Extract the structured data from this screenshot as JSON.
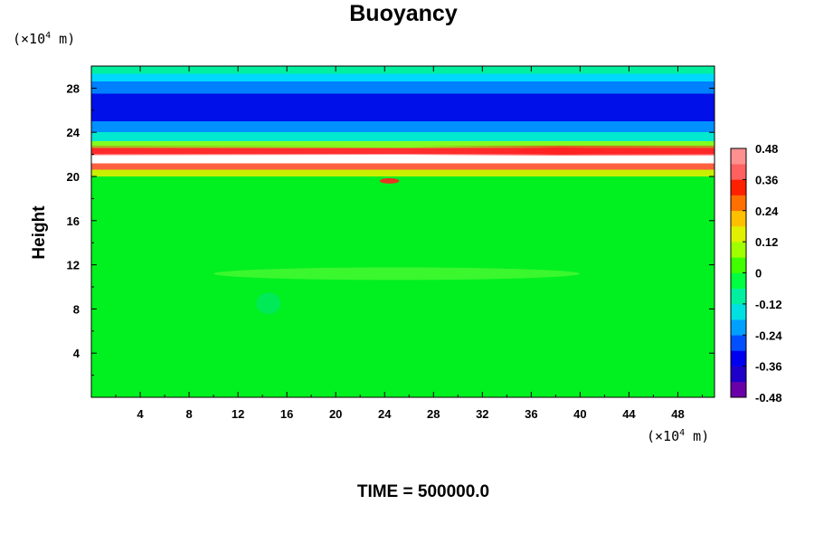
{
  "chart_data": {
    "type": "heatmap",
    "title": "Buoyancy",
    "ylabel": "Height",
    "x_unit": {
      "prefix": "(×10",
      "exp": "4",
      "suffix": " m)"
    },
    "y_unit": {
      "prefix": "(×10",
      "exp": "4",
      "suffix": " m)"
    },
    "xlim": [
      0,
      51
    ],
    "ylim": [
      0,
      30
    ],
    "x_ticks": [
      4,
      8,
      12,
      16,
      20,
      24,
      28,
      32,
      36,
      40,
      44,
      48
    ],
    "x_tick_labels": [
      "4",
      "8",
      "12",
      "16",
      "20",
      "24",
      "28",
      "32",
      "36",
      "40",
      "44",
      "48"
    ],
    "y_ticks": [
      4,
      8,
      12,
      16,
      20,
      24,
      28
    ],
    "y_tick_labels": [
      "4",
      "8",
      "12",
      "16",
      "20",
      "24",
      "28"
    ],
    "colorbar": {
      "min": -0.48,
      "max": 0.48,
      "ticks": [
        0.48,
        0.36,
        0.24,
        0.12,
        0,
        -0.12,
        -0.24,
        -0.36,
        -0.48
      ],
      "tick_labels": [
        "0.48",
        "0.36",
        "0.24",
        "0.12",
        "0",
        "-0.12",
        "-0.24",
        "-0.36",
        "-0.48"
      ],
      "colors_bottom_to_top": [
        "#6a00a8",
        "#1f00c8",
        "#0000f0",
        "#0050ff",
        "#00a0ff",
        "#00e0e0",
        "#00f0a0",
        "#00ff40",
        "#40ff00",
        "#a0ff00",
        "#e0f000",
        "#ffc000",
        "#ff7000",
        "#ff2000",
        "#ff6060",
        "#ff9090"
      ]
    },
    "bands": [
      {
        "y_from": 0,
        "y_to": 20,
        "value": 0.0,
        "color": "#00f020"
      },
      {
        "y_from": 20,
        "y_to": 20.6,
        "value": 0.12,
        "color": "#c8f000"
      },
      {
        "y_from": 20.6,
        "y_to": 21.2,
        "value": 0.3,
        "color": "#ff6040"
      },
      {
        "y_from": 21.2,
        "y_to": 22.0,
        "value": 0.48,
        "color": "#ffffff"
      },
      {
        "y_from": 22.0,
        "y_to": 22.6,
        "value": 0.36,
        "color": "#ff3030"
      },
      {
        "y_from": 22.6,
        "y_to": 23.2,
        "value": 0.05,
        "color": "#80ff20"
      },
      {
        "y_from": 23.2,
        "y_to": 24.0,
        "value": -0.12,
        "color": "#00e8d0"
      },
      {
        "y_from": 24.0,
        "y_to": 25.0,
        "value": -0.24,
        "color": "#0090ff"
      },
      {
        "y_from": 25.0,
        "y_to": 27.5,
        "value": -0.36,
        "color": "#0010e8"
      },
      {
        "y_from": 27.5,
        "y_to": 28.6,
        "value": -0.24,
        "color": "#0080ff"
      },
      {
        "y_from": 28.6,
        "y_to": 29.3,
        "value": -0.12,
        "color": "#00d8ff"
      },
      {
        "y_from": 29.3,
        "y_to": 30,
        "value": -0.05,
        "color": "#00f0a0"
      }
    ],
    "features": [
      {
        "label": "weak positive layer",
        "x_from": 10,
        "x_to": 40,
        "y": 11.2,
        "value": 0.06
      },
      {
        "label": "red maximum",
        "x_from": 35,
        "x_to": 42,
        "y": 22.3,
        "value": 0.42
      },
      {
        "label": "local maximum",
        "x_from": 23.6,
        "x_to": 25.2,
        "y": 19.6,
        "value": 0.36
      },
      {
        "label": "weak negative patch",
        "x_from": 13.5,
        "x_to": 15.5,
        "y": 8.5,
        "value": -0.08
      }
    ]
  },
  "footer": {
    "label": "TIME = 500000.0"
  }
}
